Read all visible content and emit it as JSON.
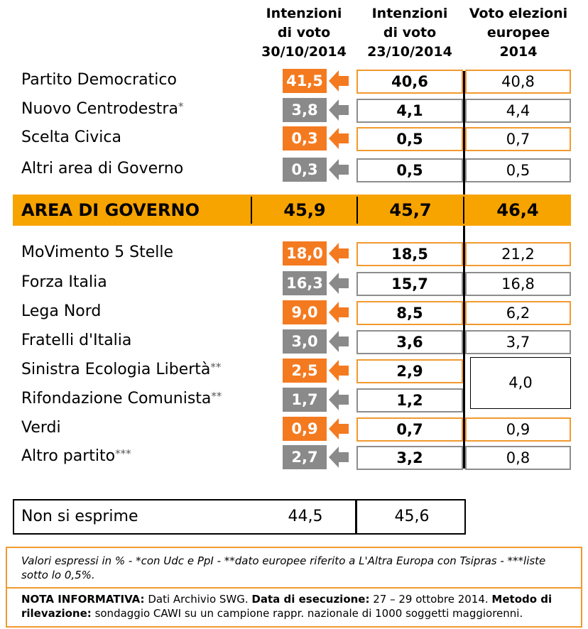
{
  "chart_data": {
    "type": "table",
    "columns": [
      {
        "line1": "Intenzioni",
        "line2": "di voto",
        "line3": "30/10/2014"
      },
      {
        "line1": "Intenzioni",
        "line2": "di voto",
        "line3": "23/10/2014"
      },
      {
        "line1": "Voto elezioni",
        "line2": "europee",
        "line3": "2014"
      }
    ],
    "rows": [
      {
        "party": "Partito Democratico",
        "mark": "",
        "current": "41,5",
        "previous": "40,6",
        "europee": "40,8",
        "color": "orange"
      },
      {
        "party": "Nuovo Centrodestra",
        "mark": "*",
        "current": "3,8",
        "previous": "4,1",
        "europee": "4,4",
        "color": "grey"
      },
      {
        "party": "Scelta Civica",
        "mark": "",
        "current": "0,3",
        "previous": "0,5",
        "europee": "0,7",
        "color": "orange"
      },
      {
        "party": "Altri area di Governo",
        "mark": "",
        "current": "0,3",
        "previous": "0,5",
        "europee": "0,5",
        "color": "grey"
      },
      {
        "party": "MoVimento 5 Stelle",
        "mark": "",
        "current": "18,0",
        "previous": "18,5",
        "europee": "21,2",
        "color": "orange"
      },
      {
        "party": "Forza Italia",
        "mark": "",
        "current": "16,3",
        "previous": "15,7",
        "europee": "16,8",
        "color": "grey"
      },
      {
        "party": "Lega Nord",
        "mark": "",
        "current": "9,0",
        "previous": "8,5",
        "europee": "6,2",
        "color": "orange"
      },
      {
        "party": "Fratelli d'Italia",
        "mark": "",
        "current": "3,0",
        "previous": "3,6",
        "europee": "3,7",
        "color": "grey"
      },
      {
        "party": "Sinistra Ecologia Libertà",
        "mark": "**",
        "current": "2,5",
        "previous": "2,9",
        "europee": "",
        "color": "orange"
      },
      {
        "party": "Rifondazione Comunista",
        "mark": "**",
        "current": "1,7",
        "previous": "1,2",
        "europee": "",
        "color": "grey"
      },
      {
        "party": "Verdi",
        "mark": "",
        "current": "0,9",
        "previous": "0,7",
        "europee": "0,9",
        "color": "orange"
      },
      {
        "party": "Altro partito",
        "mark": "***",
        "current": "2,7",
        "previous": "3,2",
        "europee": "0,8",
        "color": "grey"
      }
    ],
    "merged_europee": "4,0",
    "area_governo": {
      "label": "AREA DI GOVERNO",
      "current": "45,9",
      "previous": "45,7",
      "europee": "46,4"
    },
    "non_si_esprime": {
      "label": "Non si esprime",
      "current": "44,5",
      "previous": "45,6"
    }
  },
  "notes": {
    "line1": "Valori espressi in % - *con Udc e PpI  - **dato europee riferito a L'Altra Europa con Tsipras - ***liste sotto lo 0,5%.",
    "info_label": "NOTA INFORMATIVA:",
    "info_text": " Dati Archivio SWG. ",
    "date_label": "Data di esecuzione:",
    "date_text": " 27 – 29 ottobre 2014. ",
    "method_label": "Metodo di rilevazione:",
    "method_text": " sondaggio CAWI su un campione rappr. nazionale di 1000 soggetti maggiorenni."
  },
  "colors": {
    "orange": "#f47a20",
    "grey": "#8a8a8a",
    "band": "#f7a300",
    "orange_border": "#f29a2e",
    "grey_border": "#8d8d8d"
  }
}
